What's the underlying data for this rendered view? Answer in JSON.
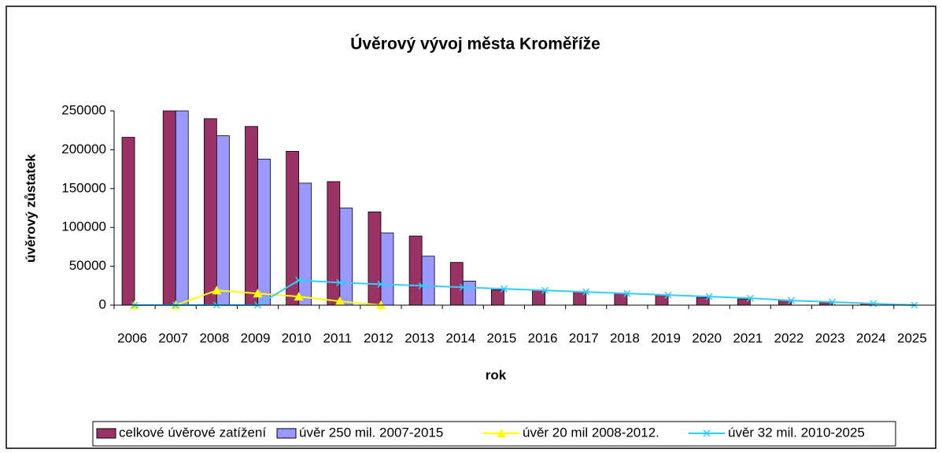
{
  "chart_data": {
    "type": "bar_line",
    "title": "Úvěrový vývoj města Kroměříže",
    "x_label": "rok",
    "y_label": "úvěrový zůstatek",
    "categories": [
      "2006",
      "2007",
      "2008",
      "2009",
      "2010",
      "2011",
      "2012",
      "2013",
      "2014",
      "2015",
      "2016",
      "2017",
      "2018",
      "2019",
      "2020",
      "2021",
      "2022",
      "2023",
      "2024",
      "2025"
    ],
    "ylim": [
      0,
      250000
    ],
    "yticks": [
      0,
      50000,
      100000,
      150000,
      200000,
      250000
    ],
    "grid": false,
    "legend": "bottom",
    "series": [
      {
        "name": "celkové úvěrové zatížení",
        "kind": "bar",
        "color": "#993366",
        "values": [
          216000,
          250000,
          240000,
          230000,
          198000,
          159000,
          120000,
          89000,
          55000,
          20000,
          19000,
          17000,
          15000,
          13000,
          10000,
          8000,
          6000,
          4000,
          2000,
          0
        ]
      },
      {
        "name": "úvěr 250 mil. 2007-2015",
        "kind": "bar",
        "color": "#9999ff",
        "values": [
          null,
          250000,
          218000,
          188000,
          157000,
          125000,
          93000,
          63000,
          31000,
          0,
          null,
          null,
          null,
          null,
          null,
          null,
          null,
          null,
          null,
          null
        ]
      },
      {
        "name": "úvěr 20 mil 2008-2012.",
        "kind": "line",
        "marker": "triangle",
        "color": "#ffff00",
        "values": [
          0,
          0,
          19000,
          15000,
          11000,
          5000,
          0,
          null,
          null,
          null,
          null,
          null,
          null,
          null,
          null,
          null,
          null,
          null,
          null,
          null
        ]
      },
      {
        "name": "úvěr 32 mil. 2010-2025",
        "kind": "line",
        "marker": "x",
        "color": "#33ccff",
        "values": [
          0,
          0,
          0,
          0,
          32000,
          29000,
          27000,
          25000,
          23000,
          21000,
          19000,
          17000,
          15000,
          13000,
          11000,
          9000,
          6000,
          4000,
          2000,
          0
        ]
      }
    ]
  }
}
